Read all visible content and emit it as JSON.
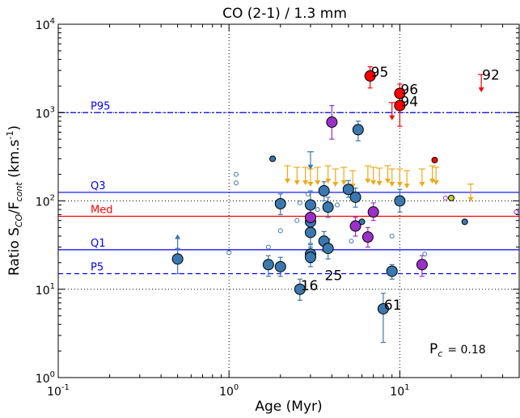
{
  "chart_data": {
    "type": "scatter",
    "title": "CO (2-1) / 1.3 mm",
    "xlabel": "Age (Myr)",
    "ylabel": "Ratio S_CO/F_cont (km.s⁻¹)",
    "xscale": "log",
    "yscale": "log",
    "xlim": [
      0.1,
      50
    ],
    "ylim": [
      1,
      10000
    ],
    "xticks": [
      {
        "value": 0.1,
        "base": "10",
        "exp": "-1"
      },
      {
        "value": 1,
        "base": "10",
        "exp": "0"
      },
      {
        "value": 10,
        "base": "10",
        "exp": "1"
      }
    ],
    "yticks": [
      {
        "value": 1,
        "base": "10",
        "exp": "0"
      },
      {
        "value": 10,
        "base": "10",
        "exp": "1"
      },
      {
        "value": 100,
        "base": "10",
        "exp": "2"
      },
      {
        "value": 1000,
        "base": "10",
        "exp": "3"
      },
      {
        "value": 10000,
        "base": "10",
        "exp": "4"
      }
    ],
    "vlines": [
      1,
      10
    ],
    "dotted_hlines": [
      10,
      100,
      1000
    ],
    "hlines": [
      {
        "label": "P95",
        "value": 1000,
        "color": "#0000ff",
        "style": "dashdot"
      },
      {
        "label": "Q3",
        "value": 125,
        "color": "#0000ff",
        "style": "solid"
      },
      {
        "label": "Med",
        "value": 67,
        "color": "#ff0000",
        "style": "solid"
      },
      {
        "label": "Q1",
        "value": 28,
        "color": "#0000ff",
        "style": "solid"
      },
      {
        "label": "P5",
        "value": 15,
        "color": "#0000ff",
        "style": "dashed"
      }
    ],
    "annotation": {
      "text": "P",
      "sub": "c",
      "value_text": "= 0.18"
    },
    "points": [
      {
        "x": 0.5,
        "y": 22,
        "size": "l",
        "color": "#3a78b0",
        "yerr": [
          15,
          29
        ]
      },
      {
        "x": 1.7,
        "y": 19,
        "size": "l",
        "color": "#3a78b0",
        "yerr": [
          14,
          24
        ]
      },
      {
        "x": 1.8,
        "y": 300,
        "size": "s",
        "color": "#3a78b0"
      },
      {
        "x": 2.0,
        "y": 18,
        "size": "l",
        "color": "#3a78b0",
        "yerr": [
          14,
          23
        ]
      },
      {
        "x": 2.0,
        "y": 93,
        "size": "l",
        "color": "#3a78b0",
        "yerr": [
          70,
          120
        ]
      },
      {
        "x": 2.6,
        "y": 10,
        "size": "l",
        "color": "#3a78b0",
        "yerr": [
          7.5,
          13
        ]
      },
      {
        "x": 3.0,
        "y": 90,
        "size": "l",
        "color": "#3a78b0",
        "yerr": [
          65,
          130
        ]
      },
      {
        "x": 3.0,
        "y": 58,
        "size": "l",
        "color": "#3a78b0",
        "yerr": [
          45,
          80
        ]
      },
      {
        "x": 3.0,
        "y": 44,
        "size": "l",
        "color": "#3a78b0",
        "yerr": [
          33,
          60
        ]
      },
      {
        "x": 3.0,
        "y": 25,
        "size": "l",
        "color": "#3a78b0",
        "yerr": [
          20,
          32
        ]
      },
      {
        "x": 3.0,
        "y": 23,
        "size": "l",
        "color": "#3a78b0",
        "yerr": [
          18,
          30
        ]
      },
      {
        "x": 3.6,
        "y": 130,
        "size": "l",
        "color": "#3a78b0",
        "yerr": [
          100,
          165
        ]
      },
      {
        "x": 3.6,
        "y": 35,
        "size": "l",
        "color": "#3a78b0",
        "yerr": [
          27,
          45
        ]
      },
      {
        "x": 3.8,
        "y": 29,
        "size": "l",
        "color": "#3a78b0",
        "yerr": [
          22,
          37
        ]
      },
      {
        "x": 3.8,
        "y": 85,
        "size": "l",
        "color": "#3a78b0",
        "yerr": [
          65,
          110
        ]
      },
      {
        "x": 5.0,
        "y": 135,
        "size": "l",
        "color": "#3a78b0",
        "yerr": [
          110,
          170
        ]
      },
      {
        "x": 5.5,
        "y": 110,
        "size": "l",
        "color": "#3a78b0",
        "yerr": [
          85,
          140
        ]
      },
      {
        "x": 5.7,
        "y": 640,
        "size": "l",
        "color": "#3a78b0",
        "yerr": [
          480,
          800
        ]
      },
      {
        "x": 6.0,
        "y": 58,
        "size": "s",
        "color": "#3a78b0"
      },
      {
        "x": 8.0,
        "y": 6,
        "size": "l",
        "color": "#3a78b0",
        "yerr": [
          2.5,
          9
        ]
      },
      {
        "x": 9.0,
        "y": 16,
        "size": "l",
        "color": "#3a78b0",
        "yerr": [
          13,
          19
        ]
      },
      {
        "x": 10.0,
        "y": 100,
        "size": "l",
        "color": "#3a78b0",
        "yerr": [
          75,
          135
        ]
      },
      {
        "x": 24.0,
        "y": 58,
        "size": "s",
        "color": "#3a78b0"
      },
      {
        "x": 4.0,
        "y": 780,
        "size": "l",
        "color": "#9b30c8",
        "yerr": [
          500,
          1200
        ]
      },
      {
        "x": 3.0,
        "y": 65,
        "size": "l",
        "color": "#9b30c8",
        "yerr": [
          50,
          85
        ]
      },
      {
        "x": 5.5,
        "y": 52,
        "size": "l",
        "color": "#9b30c8",
        "yerr": [
          40,
          65
        ]
      },
      {
        "x": 6.5,
        "y": 39,
        "size": "l",
        "color": "#9b30c8",
        "yerr": [
          30,
          50
        ]
      },
      {
        "x": 7.0,
        "y": 75,
        "size": "l",
        "color": "#9b30c8",
        "yerr": [
          60,
          95
        ]
      },
      {
        "x": 13.5,
        "y": 19,
        "size": "l",
        "color": "#9b30c8",
        "yerr": [
          14,
          24
        ]
      },
      {
        "x": 6.7,
        "y": 2600,
        "size": "l",
        "color": "#ff0000",
        "yerr": [
          1900,
          3300
        ]
      },
      {
        "x": 10.0,
        "y": 1650,
        "size": "l",
        "color": "#ff0000",
        "yerr": [
          1200,
          2100
        ]
      },
      {
        "x": 10.0,
        "y": 1200,
        "size": "l",
        "color": "#ff0000",
        "yerr": [
          700,
          1700
        ]
      },
      {
        "x": 16.0,
        "y": 290,
        "size": "s",
        "color": "#ff0000"
      },
      {
        "x": 20.0,
        "y": 108,
        "size": "s",
        "color": "#c8d020"
      }
    ],
    "open_points": [
      {
        "x": 1.1,
        "y": 200,
        "color": "#3a78b0"
      },
      {
        "x": 1.1,
        "y": 160,
        "color": "#3a78b0"
      },
      {
        "x": 1.0,
        "y": 26,
        "color": "#3a78b0"
      },
      {
        "x": 1.7,
        "y": 30,
        "color": "#3a78b0"
      },
      {
        "x": 2.0,
        "y": 46,
        "color": "#3a78b0"
      },
      {
        "x": 2.5,
        "y": 60,
        "color": "#3a78b0"
      },
      {
        "x": 2.6,
        "y": 95,
        "color": "#3a78b0"
      },
      {
        "x": 2.9,
        "y": 120,
        "color": "#3a78b0"
      },
      {
        "x": 3.3,
        "y": 80,
        "color": "#3a78b0"
      },
      {
        "x": 4.3,
        "y": 90,
        "color": "#3a78b0"
      },
      {
        "x": 5.2,
        "y": 35,
        "color": "#3a78b0"
      },
      {
        "x": 9.0,
        "y": 40,
        "color": "#3a78b0"
      },
      {
        "x": 14.0,
        "y": 25,
        "color": "#3a78b0"
      },
      {
        "x": 18.5,
        "y": 108,
        "color": "#9b30c8"
      },
      {
        "x": 48.0,
        "y": 75,
        "color": "#9b30c8"
      }
    ],
    "upper_limits": [
      {
        "x": 2.2,
        "y": 250,
        "color": "#f0a818"
      },
      {
        "x": 2.5,
        "y": 240,
        "color": "#f0a818"
      },
      {
        "x": 2.8,
        "y": 240,
        "color": "#f0a818"
      },
      {
        "x": 3.0,
        "y": 230,
        "color": "#f0a818"
      },
      {
        "x": 3.3,
        "y": 240,
        "color": "#f0a818"
      },
      {
        "x": 3.8,
        "y": 250,
        "color": "#f0a818"
      },
      {
        "x": 4.2,
        "y": 230,
        "color": "#f0a818"
      },
      {
        "x": 4.7,
        "y": 240,
        "color": "#f0a818"
      },
      {
        "x": 5.3,
        "y": 220,
        "color": "#f0a818"
      },
      {
        "x": 6.5,
        "y": 250,
        "color": "#f0a818"
      },
      {
        "x": 7.0,
        "y": 240,
        "color": "#f0a818"
      },
      {
        "x": 7.6,
        "y": 235,
        "color": "#f0a818"
      },
      {
        "x": 8.5,
        "y": 250,
        "color": "#f0a818"
      },
      {
        "x": 9.0,
        "y": 230,
        "color": "#f0a818"
      },
      {
        "x": 10.0,
        "y": 230,
        "color": "#f0a818"
      },
      {
        "x": 11.0,
        "y": 220,
        "color": "#f0a818"
      },
      {
        "x": 13.5,
        "y": 230,
        "color": "#f0a818"
      },
      {
        "x": 15.5,
        "y": 250,
        "color": "#f0a818"
      },
      {
        "x": 16.3,
        "y": 240,
        "color": "#f0a818"
      },
      {
        "x": 26.0,
        "y": 155,
        "color": "#f0a818"
      },
      {
        "x": 3.0,
        "y": 360,
        "color": "#3a78b0"
      },
      {
        "x": 9.0,
        "y": 1300,
        "color": "#ff0000"
      },
      {
        "x": 30.0,
        "y": 2700,
        "color": "#ff0000"
      }
    ],
    "lower_limits": [
      {
        "x": 0.5,
        "y": 22,
        "to": 42,
        "color": "#3a78b0"
      }
    ],
    "labels": [
      {
        "text": "95",
        "x": 6.7,
        "y": 2600
      },
      {
        "text": "96",
        "x": 10.0,
        "y": 1650
      },
      {
        "text": "94",
        "x": 10.0,
        "y": 1200
      },
      {
        "text": "92",
        "x": 30.0,
        "y": 2400
      },
      {
        "text": "16",
        "x": 2.6,
        "y": 10
      },
      {
        "text": "25",
        "x": 3.6,
        "y": 13
      },
      {
        "text": "61",
        "x": 8.0,
        "y": 6
      }
    ]
  }
}
